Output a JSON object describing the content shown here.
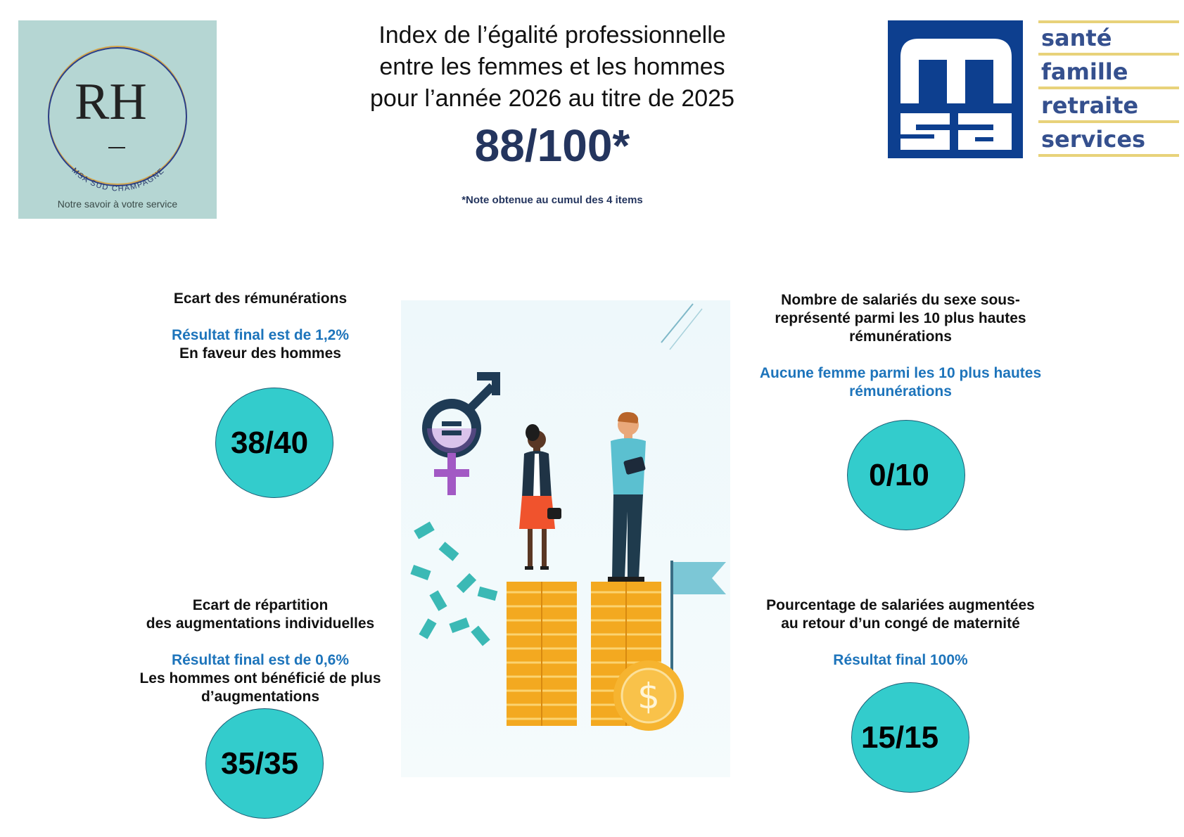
{
  "rh_logo": {
    "letters": "RH",
    "ring_text": "MSA SUD CHAMPAGNE",
    "tagline": "Notre savoir à votre service"
  },
  "header": {
    "title_lines": [
      "Index de l’égalité professionnelle",
      "entre les femmes et les hommes",
      "pour l’année 2026 au titre de 2025"
    ],
    "score": "88/100*",
    "note": "*Note obtenue au cumul des 4 items"
  },
  "msa_logo": {
    "taglines": [
      "santé",
      "famille",
      "retraite",
      "services"
    ],
    "colors": {
      "blue": "#0d3f8f",
      "tagline_text": "#35508e",
      "stripe": "#e8d27a"
    }
  },
  "sections": {
    "remuneration": {
      "heading": "Ecart des rémunérations",
      "result": "Résultat final est de 1,2%",
      "detail": "En faveur des hommes",
      "score": "38/40"
    },
    "hautes_remunerations": {
      "heading_lines": [
        "Nombre de salariés du sexe sous-",
        "représenté parmi les 10 plus hautes",
        "rémunérations"
      ],
      "result_lines": [
        "Aucune femme parmi les 10 plus hautes",
        "rémunérations"
      ],
      "score": "0/10"
    },
    "augmentations": {
      "heading_lines": [
        "Ecart de répartition",
        "des augmentations individuelles"
      ],
      "result": "Résultat final est de 0,6%",
      "detail_lines": [
        "Les hommes ont bénéficié de plus",
        "d’augmentations"
      ],
      "score": "35/35"
    },
    "maternite": {
      "heading_lines": [
        "Pourcentage de salariées augmentées",
        "au retour d’un congé de maternité"
      ],
      "result": "Résultat final 100%",
      "score": "15/15"
    }
  },
  "colors": {
    "score_navy": "#24355e",
    "result_blue": "#1d74bb",
    "circle_fill": "#33cccc",
    "rh_background": "#b5d6d3"
  },
  "illustration": {
    "icons": [
      "gender-equality-icon",
      "woman-figure",
      "man-figure",
      "coin-stacks",
      "dollar-coin-icon",
      "flag-icon",
      "banknotes"
    ]
  }
}
